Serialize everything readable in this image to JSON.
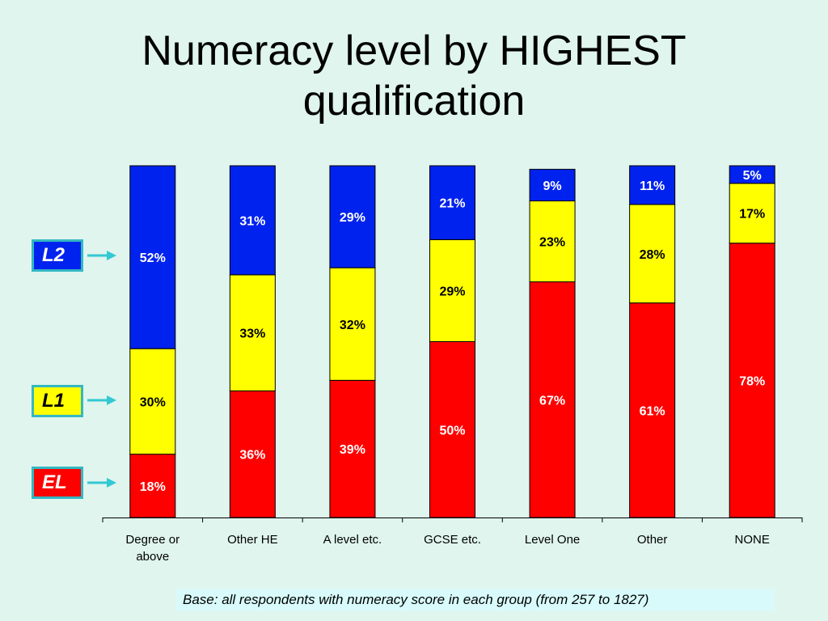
{
  "title_line1": "Numeracy level by HIGHEST",
  "title_line2": "qualification",
  "legend": [
    {
      "label": "L2",
      "color": "#0022ee",
      "text_color": "#ffffff"
    },
    {
      "label": "L1",
      "color": "#ffff00",
      "text_color": "#000000"
    },
    {
      "label": "EL",
      "color": "#ff0000",
      "text_color": "#ffffff"
    }
  ],
  "footnote": "Base: all respondents with numeracy score in each group (from 257 to 1827)",
  "chart_data": {
    "type": "bar",
    "stacked": true,
    "categories": [
      [
        "Degree or",
        "above"
      ],
      [
        "Other HE"
      ],
      [
        "A level etc."
      ],
      [
        "GCSE etc."
      ],
      [
        "Level One"
      ],
      [
        "Other"
      ],
      [
        "NONE"
      ]
    ],
    "series": [
      {
        "name": "EL",
        "color": "#ff0000",
        "label_color": "#ffffff",
        "values": [
          18,
          36,
          39,
          50,
          67,
          61,
          78
        ]
      },
      {
        "name": "L1",
        "color": "#ffff00",
        "label_color": "#000000",
        "values": [
          30,
          33,
          32,
          29,
          23,
          28,
          17
        ]
      },
      {
        "name": "L2",
        "color": "#0022ee",
        "label_color": "#ffffff",
        "values": [
          52,
          31,
          29,
          21,
          9,
          11,
          5
        ]
      }
    ],
    "value_suffix": "%",
    "ylim": [
      0,
      100
    ],
    "grid": false
  }
}
